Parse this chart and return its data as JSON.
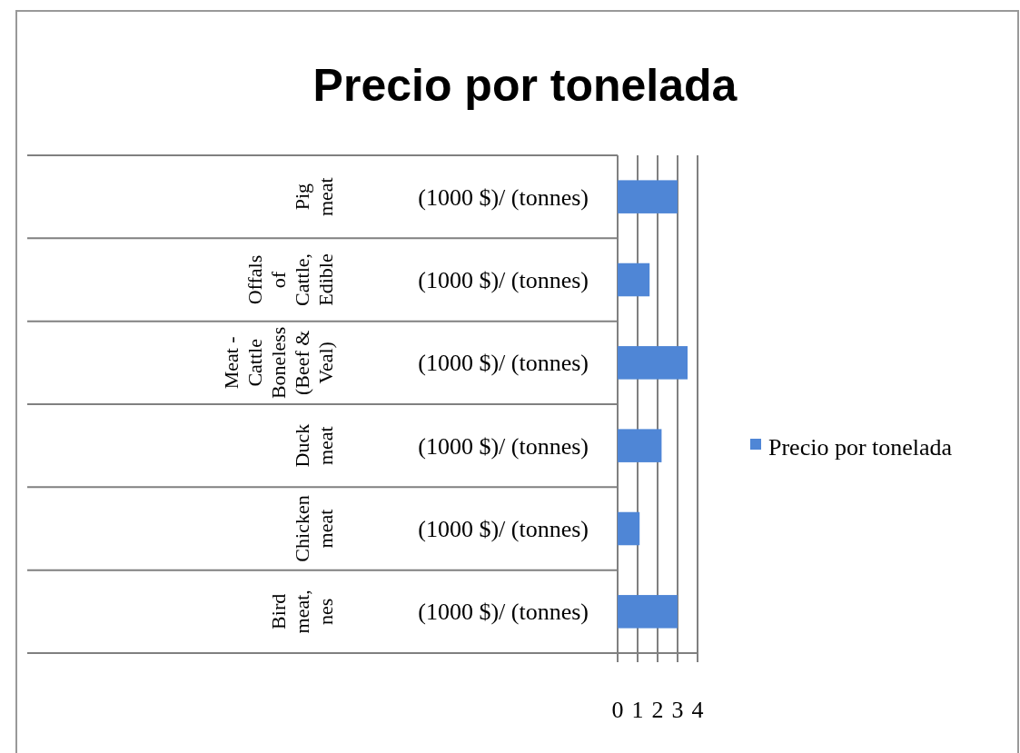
{
  "chart_data": {
    "type": "bar",
    "orientation": "horizontal",
    "title": "Precio por tonelada",
    "categories": [
      "(1000 $)/ (tonnes)",
      "(1000 $)/ (tonnes)",
      "(1000 $)/ (tonnes)",
      "(1000 $)/ (tonnes)",
      "(1000 $)/ (tonnes)",
      "(1000 $)/ (tonnes)"
    ],
    "series": [
      {
        "name": "Precio por tonelada",
        "color": "#4f86d6",
        "values": [
          3.0,
          1.6,
          3.5,
          2.2,
          1.1,
          3.0
        ]
      }
    ],
    "annotations": [
      "Pig meat",
      "Offals of Cattle, Edible",
      "Meat - Cattle Boneless (Beef & Veal)",
      "Duck meat",
      "Chicken meat",
      "Bird meat, nes"
    ],
    "xlim": [
      0,
      4
    ],
    "xticks": [
      0,
      1,
      2,
      3,
      4
    ],
    "grid": "x",
    "legend": "right"
  }
}
